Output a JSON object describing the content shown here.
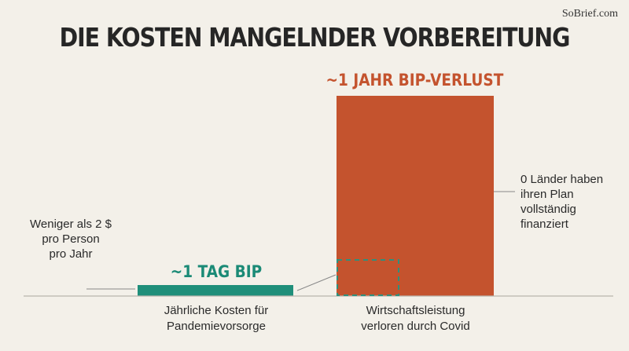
{
  "brand": "SoBrief.com",
  "title": "DIE KOSTEN MANGELNDER VORBEREITUNG",
  "chart_data": {
    "type": "bar",
    "categories": [
      "Jährliche Kosten für Pandemievorsorge",
      "Wirtschaftsleistung verloren durch Covid"
    ],
    "values": [
      1,
      365
    ],
    "value_unit": "Tage BIP",
    "bar_labels": [
      "~1 TAG BIP",
      "~1 JAHR BIP-VERLUST"
    ],
    "colors": [
      "#1f8f7a",
      "#c4532e"
    ],
    "ylim": [
      0,
      365
    ],
    "grid": false,
    "annotations": [
      "Weniger als 2 $ pro Person pro Jahr",
      "0 Länder haben ihren Plan vollständig finanziert"
    ]
  },
  "labels": {
    "small_bar_title": "~1 TAG BIP",
    "big_bar_title": "~1 JAHR BIP-VERLUST",
    "cat_a_line1": "Jährliche Kosten für",
    "cat_a_line2": "Pandemievorsorge",
    "cat_b_line1": "Wirtschaftsleistung",
    "cat_b_line2": "verloren durch Covid",
    "note_left_1": "Weniger als 2 $",
    "note_left_2": "pro Person",
    "note_left_3": "pro Jahr",
    "note_right_1": "0 Länder haben",
    "note_right_2": "ihren Plan",
    "note_right_3": "vollständig",
    "note_right_4": "finanziert"
  }
}
